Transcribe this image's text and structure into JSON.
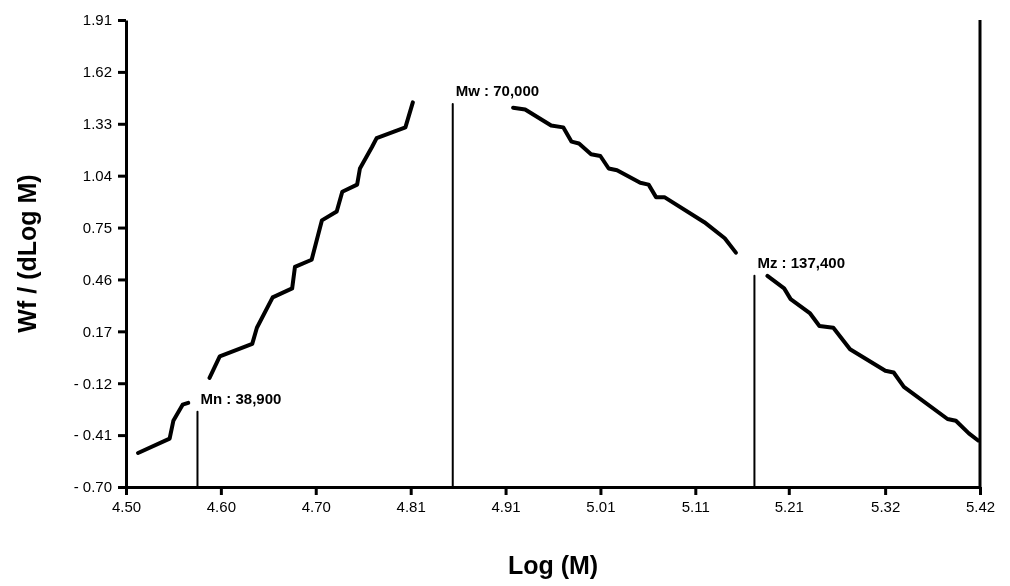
{
  "chart_data": {
    "type": "line",
    "xlabel": "Log (M)",
    "ylabel": "Wf / (dLog M)",
    "xlim": [
      4.5,
      5.42
    ],
    "ylim": [
      -0.7,
      1.91
    ],
    "xticks": [
      {
        "value": 4.5,
        "label": "4.50"
      },
      {
        "value": 4.6022,
        "label": "4.60"
      },
      {
        "value": 4.7044,
        "label": "4.70"
      },
      {
        "value": 4.8067,
        "label": "4.81"
      },
      {
        "value": 4.9089,
        "label": "4.91"
      },
      {
        "value": 5.0111,
        "label": "5.01"
      },
      {
        "value": 5.1133,
        "label": "5.11"
      },
      {
        "value": 5.214,
        "label": "5.21"
      },
      {
        "value": 5.3178,
        "label": "5.32"
      },
      {
        "value": 5.42,
        "label": "5.42"
      }
    ],
    "yticks": [
      {
        "value": -0.7,
        "label": "- 0.70"
      },
      {
        "value": -0.41,
        "label": "- 0.41"
      },
      {
        "value": -0.12,
        "label": "- 0.12"
      },
      0.17,
      0.46,
      0.75,
      1.04,
      1.33,
      1.62,
      1.91
    ],
    "marker": "none",
    "line_style": "solid",
    "series": [
      {
        "color": "#000000",
        "x": [
          4.513,
          4.547,
          4.551,
          4.561,
          4.567,
          4.578,
          4.59,
          4.601,
          4.636,
          4.641,
          4.658,
          4.679,
          4.682,
          4.7,
          4.711,
          4.727,
          4.733,
          4.749,
          4.752,
          4.765,
          4.77,
          4.801,
          4.809,
          4.86,
          4.917,
          4.93,
          4.958,
          4.971,
          4.98,
          4.988,
          5.001,
          5.011,
          5.02,
          5.029,
          5.054,
          5.063,
          5.071,
          5.08,
          5.123,
          5.145,
          5.157,
          5.175,
          5.191,
          5.209,
          5.216,
          5.237,
          5.247,
          5.262,
          5.28,
          5.318,
          5.327,
          5.338,
          5.385,
          5.394,
          5.408,
          5.418
        ],
        "values": [
          -0.51,
          -0.43,
          -0.33,
          -0.24,
          -0.23,
          null,
          -0.09,
          0.03,
          0.1,
          0.19,
          0.36,
          0.41,
          0.53,
          0.57,
          0.79,
          0.84,
          0.95,
          0.99,
          1.08,
          1.2,
          1.25,
          1.31,
          1.45,
          null,
          1.42,
          1.41,
          1.32,
          1.31,
          1.23,
          1.22,
          1.16,
          1.15,
          1.08,
          1.07,
          1.0,
          0.99,
          0.92,
          0.92,
          0.78,
          0.69,
          0.61,
          null,
          0.48,
          0.41,
          0.35,
          0.27,
          0.2,
          0.19,
          0.07,
          -0.05,
          -0.06,
          -0.14,
          -0.32,
          -0.33,
          -0.4,
          -0.44
        ]
      },
      {
        "color": "#000000",
        "x": [
          4.577,
          4.577
        ],
        "values": [
          -0.7,
          -0.28
        ]
      },
      {
        "color": "#000000",
        "x": [
          4.852,
          4.852
        ],
        "values": [
          -0.7,
          1.44
        ]
      },
      {
        "color": "#000000",
        "x": [
          5.177,
          5.177
        ],
        "values": [
          -0.7,
          0.48
        ]
      }
    ],
    "annotations": [
      {
        "text": "Mn : 38,900",
        "x": 4.577,
        "y": -0.28
      },
      {
        "text": "Mw : 70,000",
        "x": 4.852,
        "y": 1.44
      },
      {
        "text": "Mz : 137,400",
        "x": 5.177,
        "y": 0.48
      }
    ]
  }
}
